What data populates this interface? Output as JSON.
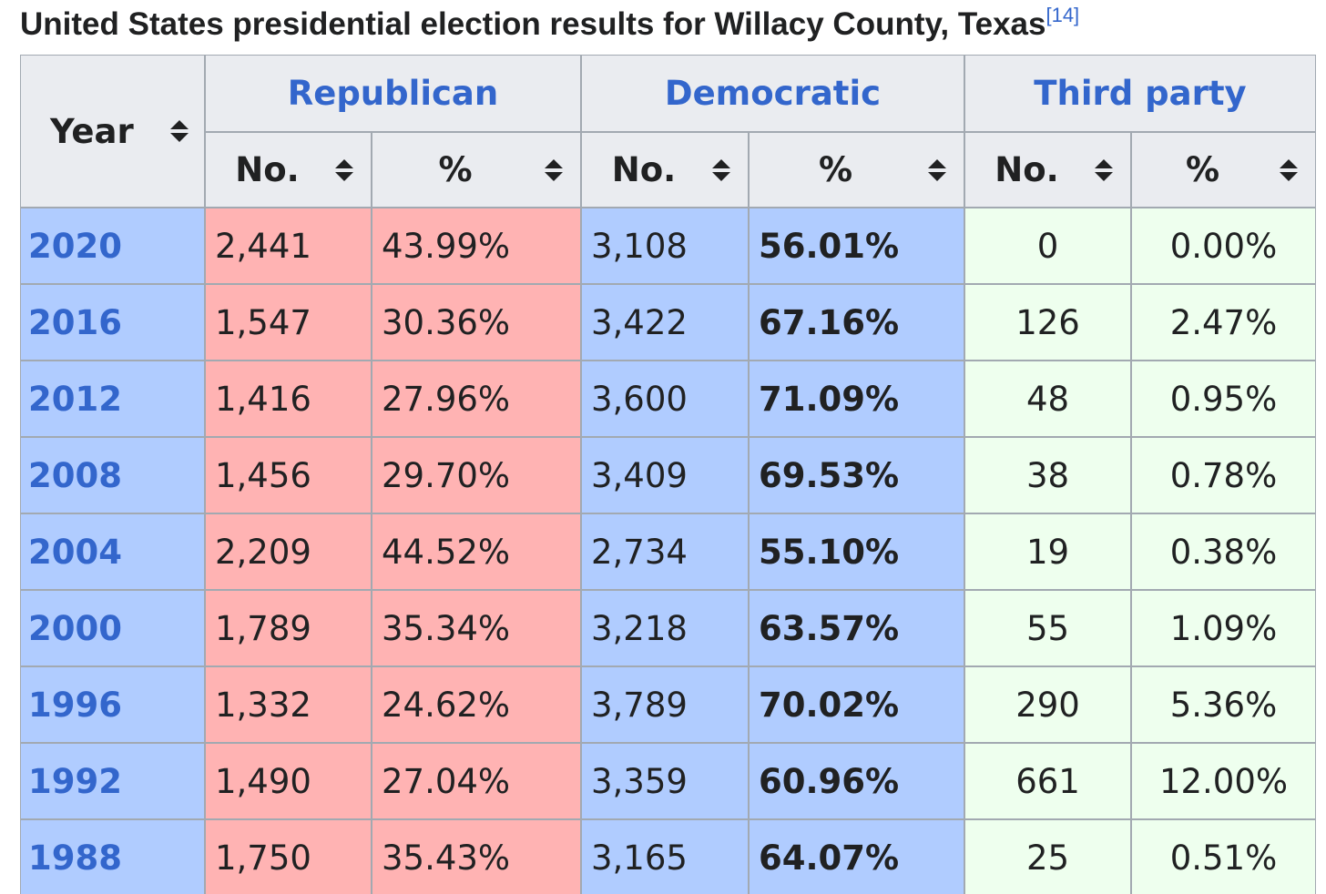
{
  "title": "United States presidential election results for Willacy County, Texas",
  "title_ref": "[14]",
  "table": {
    "header": {
      "year": "Year",
      "groups": [
        "Republican",
        "Democratic",
        "Third party"
      ],
      "sub": [
        "No.",
        "%",
        "No.",
        "%",
        "No.",
        "%"
      ]
    },
    "rows": [
      [
        "2020",
        "2,441",
        "43.99%",
        "3,108",
        "56.01%",
        "0",
        "0.00%"
      ],
      [
        "2016",
        "1,547",
        "30.36%",
        "3,422",
        "67.16%",
        "126",
        "2.47%"
      ],
      [
        "2012",
        "1,416",
        "27.96%",
        "3,600",
        "71.09%",
        "48",
        "0.95%"
      ],
      [
        "2008",
        "1,456",
        "29.70%",
        "3,409",
        "69.53%",
        "38",
        "0.78%"
      ],
      [
        "2004",
        "2,209",
        "44.52%",
        "2,734",
        "55.10%",
        "19",
        "0.38%"
      ],
      [
        "2000",
        "1,789",
        "35.34%",
        "3,218",
        "63.57%",
        "55",
        "1.09%"
      ],
      [
        "1996",
        "1,332",
        "24.62%",
        "3,789",
        "70.02%",
        "290",
        "5.36%"
      ],
      [
        "1992",
        "1,490",
        "27.04%",
        "3,359",
        "60.96%",
        "661",
        "12.00%"
      ],
      [
        "1988",
        "1,750",
        "35.43%",
        "3,165",
        "64.07%",
        "25",
        "0.51%"
      ]
    ]
  }
}
